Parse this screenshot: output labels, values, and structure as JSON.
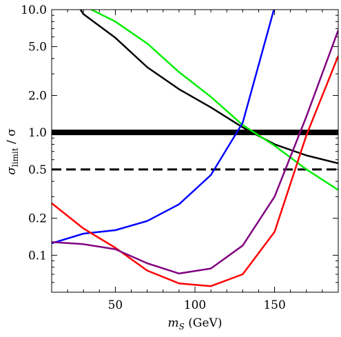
{
  "chart_data": {
    "type": "line",
    "title": "",
    "xlabel": {
      "var": "m",
      "sub": "S",
      "unit": "(GeV)"
    },
    "ylabel": {
      "var": "σ",
      "sub": "limit",
      "tail": "/ σ"
    },
    "xlim": [
      10,
      190
    ],
    "ylim": [
      0.05,
      10
    ],
    "yscale": "log",
    "grid": false,
    "legend": "none",
    "x_ticks": [
      50,
      100,
      150
    ],
    "y_ticks": [
      {
        "value": 10,
        "label": "10.0"
      },
      {
        "value": 5,
        "label": "5.0"
      },
      {
        "value": 2,
        "label": "2.0"
      },
      {
        "value": 1,
        "label": "1.0"
      },
      {
        "value": 0.5,
        "label": "0.5"
      },
      {
        "value": 0.2,
        "label": "0.2"
      },
      {
        "value": 0.1,
        "label": "0.1"
      }
    ],
    "hlines": [
      {
        "y": 1.0,
        "style": "solid",
        "color": "#000000"
      },
      {
        "y": 0.5,
        "style": "dashed",
        "color": "#000000"
      }
    ],
    "series": [
      {
        "color": "#000000",
        "points": [
          [
            27,
            10.5
          ],
          [
            30,
            9.2
          ],
          [
            50,
            5.9
          ],
          [
            70,
            3.4
          ],
          [
            90,
            2.25
          ],
          [
            110,
            1.6
          ],
          [
            130,
            1.1
          ],
          [
            150,
            0.8
          ],
          [
            170,
            0.65
          ],
          [
            190,
            0.56
          ]
        ]
      },
      {
        "color": "#00ee00",
        "points": [
          [
            33,
            10.3
          ],
          [
            50,
            8.0
          ],
          [
            70,
            5.3
          ],
          [
            90,
            3.1
          ],
          [
            110,
            1.95
          ],
          [
            130,
            1.15
          ],
          [
            150,
            0.78
          ],
          [
            170,
            0.5
          ],
          [
            190,
            0.34
          ]
        ]
      },
      {
        "color": "#0000ff",
        "points": [
          [
            10,
            0.125
          ],
          [
            30,
            0.15
          ],
          [
            50,
            0.16
          ],
          [
            70,
            0.19
          ],
          [
            90,
            0.26
          ],
          [
            110,
            0.45
          ],
          [
            130,
            1.2
          ],
          [
            150,
            10.5
          ]
        ]
      },
      {
        "color": "#ff0000",
        "points": [
          [
            10,
            0.265
          ],
          [
            30,
            0.165
          ],
          [
            50,
            0.115
          ],
          [
            70,
            0.075
          ],
          [
            90,
            0.059
          ],
          [
            110,
            0.056
          ],
          [
            130,
            0.07
          ],
          [
            150,
            0.155
          ],
          [
            170,
            0.95
          ],
          [
            190,
            4.2
          ]
        ]
      },
      {
        "color": "#800080",
        "points": [
          [
            10,
            0.128
          ],
          [
            30,
            0.123
          ],
          [
            50,
            0.112
          ],
          [
            70,
            0.086
          ],
          [
            90,
            0.071
          ],
          [
            110,
            0.078
          ],
          [
            130,
            0.12
          ],
          [
            150,
            0.3
          ],
          [
            170,
            1.35
          ],
          [
            190,
            6.8
          ]
        ]
      }
    ]
  }
}
